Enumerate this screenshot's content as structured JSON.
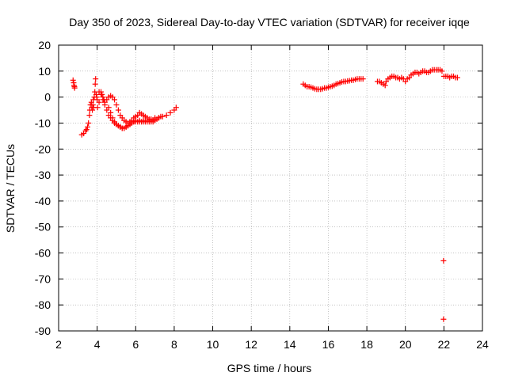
{
  "chart_data": {
    "type": "scatter",
    "title": "Day 350 of 2023, Sidereal Day-to-day VTEC variation (SDTVAR) for receiver iqqe",
    "xlabel": "GPS time / hours",
    "ylabel": "SDTVAR / TECUs",
    "xlim": [
      2,
      24
    ],
    "ylim": [
      -90,
      20
    ],
    "xticks": [
      2,
      4,
      6,
      8,
      10,
      12,
      14,
      16,
      18,
      20,
      22,
      24
    ],
    "yticks": [
      20,
      10,
      0,
      -10,
      -20,
      -30,
      -40,
      -50,
      -60,
      -70,
      -80,
      -90
    ],
    "grid": true,
    "marker": "+",
    "color": "#ff0000",
    "series": [
      {
        "name": "SDTVAR",
        "x": [
          2.75,
          2.78,
          2.8,
          2.82,
          2.83,
          3.2,
          3.3,
          3.4,
          3.45,
          3.5,
          3.55,
          3.6,
          3.62,
          3.65,
          3.7,
          3.72,
          3.75,
          3.78,
          3.8,
          3.82,
          3.85,
          3.88,
          3.9,
          3.92,
          3.95,
          3.98,
          4.0,
          4.02,
          4.1,
          4.2,
          4.25,
          4.3,
          4.35,
          4.4,
          4.5,
          4.6,
          4.7,
          4.8,
          4.9,
          5.0,
          5.1,
          5.2,
          5.3,
          5.4,
          5.5,
          5.6,
          5.7,
          5.8,
          5.9,
          6.0,
          6.1,
          6.2,
          6.3,
          6.4,
          6.5,
          6.6,
          6.7,
          6.8,
          6.9,
          7.0,
          7.1,
          7.2,
          7.3,
          4.6,
          4.7,
          4.8,
          4.9,
          5.0,
          5.1,
          5.2,
          5.3,
          5.4,
          5.5,
          5.6,
          5.7,
          5.8,
          5.9,
          6.0,
          6.1,
          6.2,
          6.3,
          6.4,
          6.5,
          6.6,
          6.7,
          6.8,
          6.9,
          7.0,
          7.2,
          4.1,
          4.2,
          4.3,
          4.4,
          4.5,
          4.6,
          4.7,
          4.8,
          4.9,
          5.0,
          5.1,
          5.2,
          5.3,
          5.4,
          5.5,
          5.6,
          5.7,
          5.8,
          5.9,
          6.0,
          6.2,
          6.4,
          6.6,
          6.8,
          7.0,
          7.2,
          7.4,
          7.6,
          7.8,
          8.0,
          8.1,
          14.7,
          14.8,
          14.9,
          15.0,
          15.1,
          15.2,
          15.3,
          15.4,
          15.5,
          15.6,
          15.7,
          15.8,
          15.9,
          16.0,
          16.1,
          16.2,
          16.3,
          16.4,
          16.5,
          16.6,
          16.7,
          16.8,
          16.9,
          17.0,
          17.1,
          17.2,
          17.3,
          17.4,
          17.5,
          17.6,
          17.7,
          17.8,
          18.55,
          18.65,
          18.75,
          18.85,
          18.95,
          19.0,
          19.1,
          19.2,
          19.3,
          19.4,
          19.5,
          19.6,
          19.7,
          19.8,
          19.9,
          20.0,
          20.1,
          20.2,
          20.3,
          20.4,
          20.5,
          20.6,
          20.7,
          20.8,
          20.9,
          21.0,
          21.1,
          21.2,
          21.3,
          21.4,
          21.5,
          21.6,
          21.7,
          21.8,
          21.9,
          22.0,
          22.1,
          22.2,
          22.3,
          22.4,
          22.5,
          22.6,
          22.7,
          21.98,
          21.98
        ],
        "y": [
          6.5,
          5.5,
          4.5,
          4,
          3.5,
          -14.5,
          -14,
          -13,
          -12.5,
          -11.5,
          -10,
          -7,
          -5,
          -3,
          -2,
          -4,
          -5,
          -3,
          -1,
          -4,
          0,
          2,
          5,
          7,
          1,
          0,
          -1,
          -4,
          -2,
          2,
          1,
          0,
          -1,
          -2,
          -1,
          0,
          0.5,
          0,
          -1,
          -3,
          -5,
          -7,
          -8,
          -9,
          -9.5,
          -10,
          -9.5,
          -9,
          -8,
          -7.5,
          -7,
          -6,
          -6.5,
          -7,
          -7.5,
          -8,
          -8.5,
          -9,
          -9.5,
          -9,
          -8.5,
          -8,
          -7.5,
          -4,
          -6,
          -8,
          -9.5,
          -10.5,
          -11,
          -11.5,
          -12,
          -12,
          -11.5,
          -11,
          -10.5,
          -10,
          -9.5,
          -9.5,
          -9.5,
          -9.5,
          -9.5,
          -9.5,
          -9.5,
          -9.5,
          -9.5,
          -9.5,
          -9,
          -8.5,
          -8,
          2,
          1,
          -1,
          -3,
          -5,
          -7,
          -8,
          -9,
          -10,
          -10.5,
          -11,
          -11.5,
          -12,
          -12,
          -11.5,
          -11,
          -10.5,
          -10,
          -9.5,
          -9,
          -9,
          -9,
          -9,
          -8.5,
          -8,
          -8,
          -7.5,
          -7,
          -6,
          -5,
          -4,
          5,
          4.5,
          4,
          4,
          3.8,
          3.5,
          3.2,
          3,
          3,
          3,
          3.2,
          3.5,
          3.5,
          3.8,
          4,
          4.2,
          4.5,
          5,
          5.2,
          5.5,
          5.8,
          6,
          6,
          6.2,
          6.3,
          6.5,
          6.5,
          6.8,
          7,
          7,
          7,
          7,
          6,
          6,
          5.5,
          5,
          4.5,
          6,
          7,
          7.5,
          8,
          8,
          7.5,
          7.5,
          7,
          7.5,
          7,
          6,
          7,
          7.5,
          8.5,
          9,
          9.5,
          9.5,
          9,
          9.5,
          10,
          10,
          9.5,
          9.5,
          10,
          10.5,
          10.5,
          10.5,
          10.5,
          10.5,
          10,
          8,
          8,
          8,
          7.5,
          8,
          8,
          7.5,
          7.5,
          -63,
          -85.5
        ]
      }
    ]
  }
}
